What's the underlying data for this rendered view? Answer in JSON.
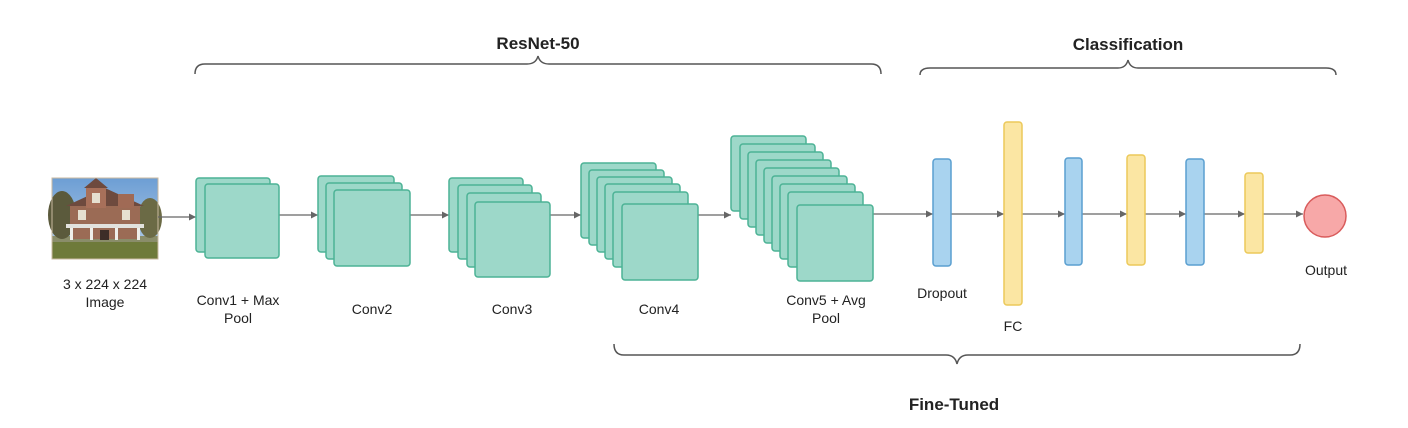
{
  "headers": {
    "resnet": "ResNet-50",
    "classification": "Classification",
    "fine_tuned": "Fine-Tuned"
  },
  "input": {
    "label_line1": "3 x 224 x 224",
    "label_line2": "Image"
  },
  "stages": [
    {
      "line1": "Conv1 + Max",
      "line2": "Pool"
    },
    {
      "line1": "Conv2",
      "line2": ""
    },
    {
      "line1": "Conv3",
      "line2": ""
    },
    {
      "line1": "Conv4",
      "line2": ""
    },
    {
      "line1": "Conv5 + Avg",
      "line2": "Pool"
    }
  ],
  "classifier": {
    "dropout": "Dropout",
    "fc": "FC",
    "output": "Output"
  },
  "colors": {
    "conv_fill": "#9dd8c9",
    "conv_stroke": "#4cb295",
    "blue_fill": "#a9d3ef",
    "blue_stroke": "#5a9fd0",
    "yellow_fill": "#fbe6a3",
    "yellow_stroke": "#ecc95a",
    "output_fill": "#f7a8a8",
    "output_stroke": "#d95c5c",
    "line": "#666666",
    "brace": "#555555"
  }
}
